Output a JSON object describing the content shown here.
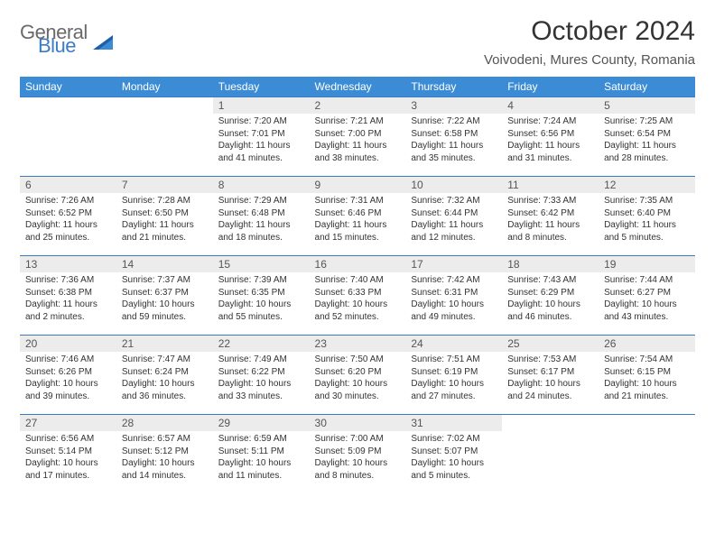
{
  "logo": {
    "word1": "General",
    "word2": "Blue"
  },
  "title": "October 2024",
  "location": "Voivodeni, Mures County, Romania",
  "colors": {
    "header_bg": "#3b8cd4",
    "header_fg": "#ffffff",
    "rule": "#3b7cc4",
    "daynum_bg": "#ececec",
    "logo_blue": "#3b7cc4",
    "logo_gray": "#6a6a6a"
  },
  "weekdays": [
    "Sunday",
    "Monday",
    "Tuesday",
    "Wednesday",
    "Thursday",
    "Friday",
    "Saturday"
  ],
  "weeks": [
    [
      null,
      null,
      {
        "n": "1",
        "sr": "7:20 AM",
        "ss": "7:01 PM",
        "dl": "11 hours and 41 minutes."
      },
      {
        "n": "2",
        "sr": "7:21 AM",
        "ss": "7:00 PM",
        "dl": "11 hours and 38 minutes."
      },
      {
        "n": "3",
        "sr": "7:22 AM",
        "ss": "6:58 PM",
        "dl": "11 hours and 35 minutes."
      },
      {
        "n": "4",
        "sr": "7:24 AM",
        "ss": "6:56 PM",
        "dl": "11 hours and 31 minutes."
      },
      {
        "n": "5",
        "sr": "7:25 AM",
        "ss": "6:54 PM",
        "dl": "11 hours and 28 minutes."
      }
    ],
    [
      {
        "n": "6",
        "sr": "7:26 AM",
        "ss": "6:52 PM",
        "dl": "11 hours and 25 minutes."
      },
      {
        "n": "7",
        "sr": "7:28 AM",
        "ss": "6:50 PM",
        "dl": "11 hours and 21 minutes."
      },
      {
        "n": "8",
        "sr": "7:29 AM",
        "ss": "6:48 PM",
        "dl": "11 hours and 18 minutes."
      },
      {
        "n": "9",
        "sr": "7:31 AM",
        "ss": "6:46 PM",
        "dl": "11 hours and 15 minutes."
      },
      {
        "n": "10",
        "sr": "7:32 AM",
        "ss": "6:44 PM",
        "dl": "11 hours and 12 minutes."
      },
      {
        "n": "11",
        "sr": "7:33 AM",
        "ss": "6:42 PM",
        "dl": "11 hours and 8 minutes."
      },
      {
        "n": "12",
        "sr": "7:35 AM",
        "ss": "6:40 PM",
        "dl": "11 hours and 5 minutes."
      }
    ],
    [
      {
        "n": "13",
        "sr": "7:36 AM",
        "ss": "6:38 PM",
        "dl": "11 hours and 2 minutes."
      },
      {
        "n": "14",
        "sr": "7:37 AM",
        "ss": "6:37 PM",
        "dl": "10 hours and 59 minutes."
      },
      {
        "n": "15",
        "sr": "7:39 AM",
        "ss": "6:35 PM",
        "dl": "10 hours and 55 minutes."
      },
      {
        "n": "16",
        "sr": "7:40 AM",
        "ss": "6:33 PM",
        "dl": "10 hours and 52 minutes."
      },
      {
        "n": "17",
        "sr": "7:42 AM",
        "ss": "6:31 PM",
        "dl": "10 hours and 49 minutes."
      },
      {
        "n": "18",
        "sr": "7:43 AM",
        "ss": "6:29 PM",
        "dl": "10 hours and 46 minutes."
      },
      {
        "n": "19",
        "sr": "7:44 AM",
        "ss": "6:27 PM",
        "dl": "10 hours and 43 minutes."
      }
    ],
    [
      {
        "n": "20",
        "sr": "7:46 AM",
        "ss": "6:26 PM",
        "dl": "10 hours and 39 minutes."
      },
      {
        "n": "21",
        "sr": "7:47 AM",
        "ss": "6:24 PM",
        "dl": "10 hours and 36 minutes."
      },
      {
        "n": "22",
        "sr": "7:49 AM",
        "ss": "6:22 PM",
        "dl": "10 hours and 33 minutes."
      },
      {
        "n": "23",
        "sr": "7:50 AM",
        "ss": "6:20 PM",
        "dl": "10 hours and 30 minutes."
      },
      {
        "n": "24",
        "sr": "7:51 AM",
        "ss": "6:19 PM",
        "dl": "10 hours and 27 minutes."
      },
      {
        "n": "25",
        "sr": "7:53 AM",
        "ss": "6:17 PM",
        "dl": "10 hours and 24 minutes."
      },
      {
        "n": "26",
        "sr": "7:54 AM",
        "ss": "6:15 PM",
        "dl": "10 hours and 21 minutes."
      }
    ],
    [
      {
        "n": "27",
        "sr": "6:56 AM",
        "ss": "5:14 PM",
        "dl": "10 hours and 17 minutes."
      },
      {
        "n": "28",
        "sr": "6:57 AM",
        "ss": "5:12 PM",
        "dl": "10 hours and 14 minutes."
      },
      {
        "n": "29",
        "sr": "6:59 AM",
        "ss": "5:11 PM",
        "dl": "10 hours and 11 minutes."
      },
      {
        "n": "30",
        "sr": "7:00 AM",
        "ss": "5:09 PM",
        "dl": "10 hours and 8 minutes."
      },
      {
        "n": "31",
        "sr": "7:02 AM",
        "ss": "5:07 PM",
        "dl": "10 hours and 5 minutes."
      },
      null,
      null
    ]
  ],
  "labels": {
    "sunrise": "Sunrise:",
    "sunset": "Sunset:",
    "daylight": "Daylight:"
  }
}
